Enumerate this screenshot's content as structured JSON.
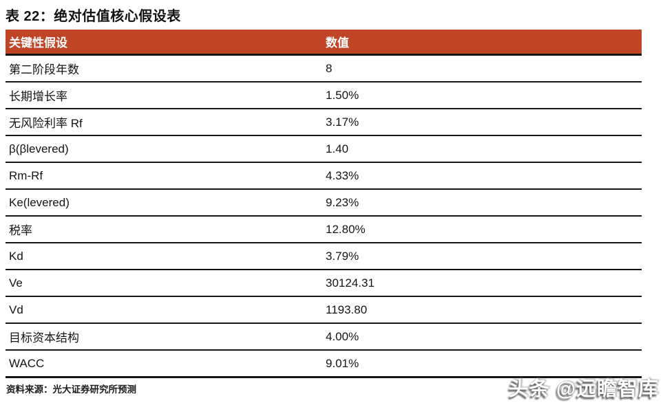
{
  "page": {
    "title": "表 22：绝对估值核心假设表",
    "source": "资料来源：光大证券研究所预测",
    "watermark": "头条 @远瞻智库"
  },
  "table": {
    "headers": [
      "关键性假设",
      "数值"
    ],
    "rows": [
      [
        "第二阶段年数",
        "8"
      ],
      [
        "长期增长率",
        "1.50%"
      ],
      [
        "无风险利率 Rf",
        "3.17%"
      ],
      [
        "β(βlevered)",
        "1.40"
      ],
      [
        "Rm-Rf",
        "4.33%"
      ],
      [
        "Ke(levered)",
        "9.23%"
      ],
      [
        "税率",
        "12.80%"
      ],
      [
        "Kd",
        "3.79%"
      ],
      [
        "Ve",
        "30124.31"
      ],
      [
        "Vd",
        "1193.80"
      ],
      [
        "目标资本结构",
        "4.00%"
      ],
      [
        "WACC",
        "9.01%"
      ]
    ]
  },
  "colors": {
    "header_bg": "#c04527",
    "header_text": "#ffffff",
    "body_text": "#141414",
    "rule_line": "#151515",
    "watermark_text": "#ffffff"
  }
}
